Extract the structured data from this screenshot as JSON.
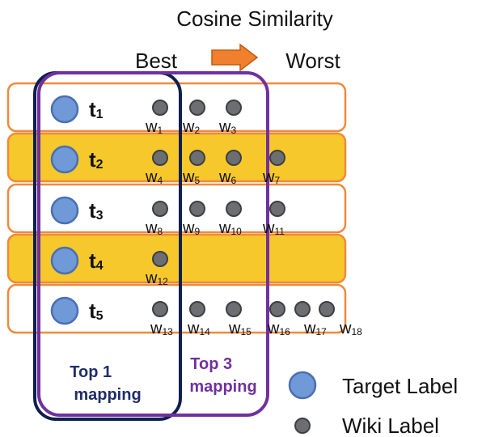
{
  "header": {
    "title": "Cosine Similarity",
    "best": "Best",
    "worst": "Worst"
  },
  "colors": {
    "row_white_fill": "#ffffff",
    "row_yellow_fill": "#f6c82b",
    "row_border": "#f08a3c",
    "arrow_fill": "#f07f2e",
    "arrow_stroke": "#c55a11",
    "top1_border": "#0f1f4f",
    "top3_border": "#7030a0",
    "target_fill": "#7099d8",
    "target_stroke": "#4a6fb3",
    "wiki_fill": "#6d6e72",
    "wiki_stroke": "#3e3f42"
  },
  "rows": [
    {
      "id": "t1",
      "base": "t",
      "sub": "1",
      "highlight": false,
      "wikis": [
        {
          "base": "w",
          "sub": "1"
        },
        {
          "base": "w",
          "sub": "2"
        },
        {
          "base": "w",
          "sub": "3"
        }
      ]
    },
    {
      "id": "t2",
      "base": "t",
      "sub": "2",
      "highlight": true,
      "wikis": [
        {
          "base": "w",
          "sub": "4"
        },
        {
          "base": "w",
          "sub": "5"
        },
        {
          "base": "w",
          "sub": "6"
        },
        {
          "base": "w",
          "sub": "7"
        }
      ]
    },
    {
      "id": "t3",
      "base": "t",
      "sub": "3",
      "highlight": false,
      "wikis": [
        {
          "base": "w",
          "sub": "8"
        },
        {
          "base": "w",
          "sub": "9"
        },
        {
          "base": "w",
          "sub": "10"
        },
        {
          "base": "w",
          "sub": "11"
        }
      ]
    },
    {
      "id": "t4",
      "base": "t",
      "sub": "4",
      "highlight": true,
      "wikis": [
        {
          "base": "w",
          "sub": "12"
        }
      ]
    },
    {
      "id": "t5",
      "base": "t",
      "sub": "5",
      "highlight": false,
      "wikis": [
        {
          "base": "w",
          "sub": "13"
        },
        {
          "base": "w",
          "sub": "14"
        },
        {
          "base": "w",
          "sub": "15"
        },
        {
          "base": "w",
          "sub": "16"
        },
        {
          "base": "w",
          "sub": "17"
        },
        {
          "base": "w",
          "sub": "18"
        }
      ]
    }
  ],
  "groups": {
    "top1": {
      "line1": "Top 1",
      "line2": "mapping"
    },
    "top3": {
      "line1": "Top 3",
      "line2": "mapping"
    }
  },
  "legend": {
    "target": "Target Label",
    "wiki": "Wiki Label"
  }
}
